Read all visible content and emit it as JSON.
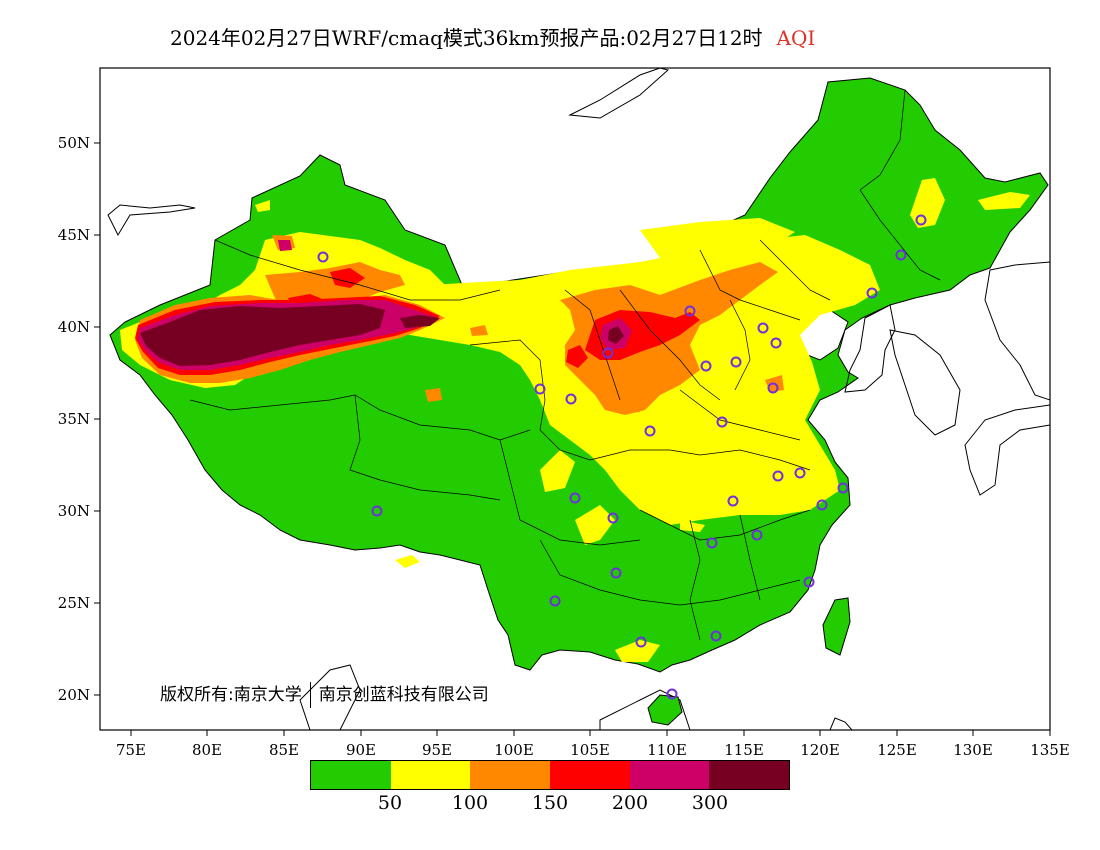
{
  "title": {
    "main": "2024年02月27日WRF/cmaq模式36km预报产品:02月27日12时",
    "variable": "AQI"
  },
  "axes": {
    "lon_labels": [
      "75E",
      "80E",
      "85E",
      "90E",
      "95E",
      "100E",
      "105E",
      "110E",
      "115E",
      "120E",
      "125E",
      "130E",
      "135E"
    ],
    "lat_labels": [
      "50N",
      "45N",
      "40N",
      "35N",
      "30N",
      "25N",
      "20N"
    ]
  },
  "copyright": {
    "part1": "版权所有:南京大学",
    "part2": "南京创蓝科技有限公司"
  },
  "legend": {
    "colors": [
      "#22cc00",
      "#ffff00",
      "#ff8800",
      "#ff0000",
      "#cc0066",
      "#770022"
    ],
    "labels": [
      "50",
      "100",
      "150",
      "200",
      "300"
    ]
  },
  "colors": {
    "good": "#22cc00",
    "moderate": "#ffff00",
    "usg": "#ff8800",
    "unhealthy": "#ff0000",
    "very_unhealthy": "#cc0066",
    "hazardous": "#770022",
    "station_marker": "#7030e0"
  }
}
